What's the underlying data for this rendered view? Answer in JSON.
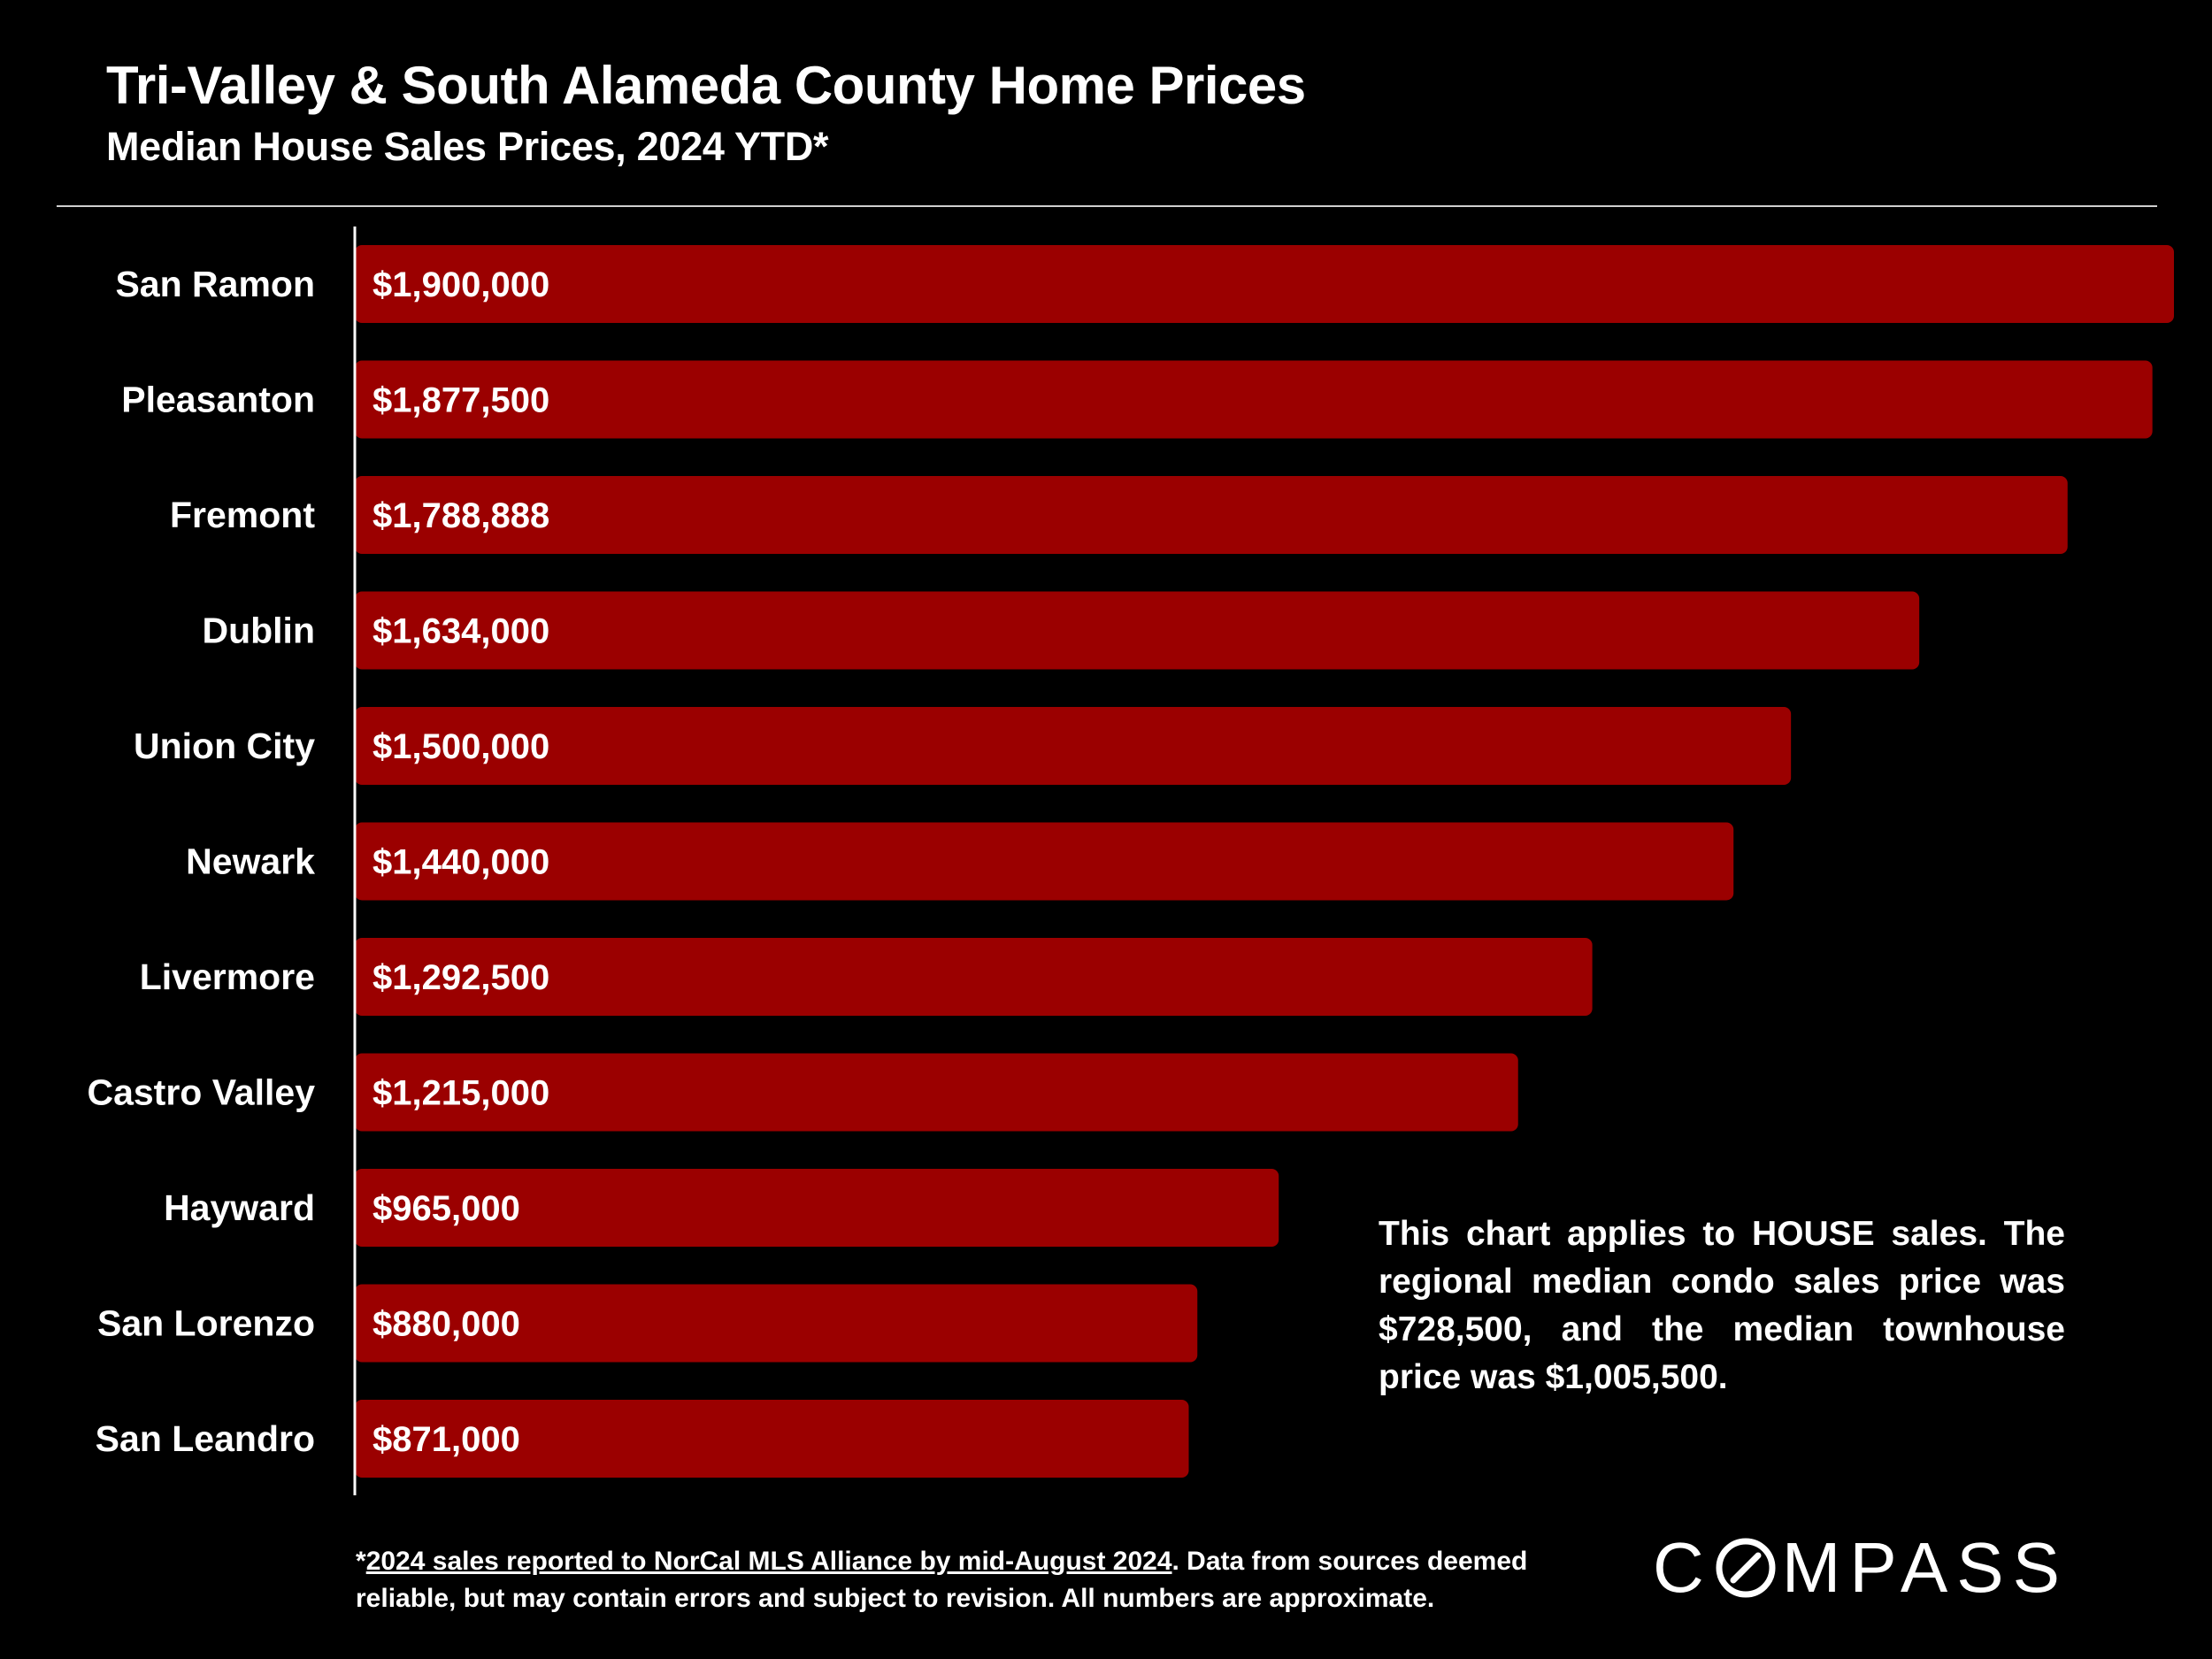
{
  "title": "Tri-Valley & South Alameda County Home Prices",
  "subtitle": "Median House Sales Prices, 2024 YTD*",
  "note": "This chart applies to HOUSE sales. The regional median condo sales price was $728,500, and the median townhouse price was $1,005,500.",
  "footnote": {
    "asterisk": "*",
    "linked": "2024 sales reported to NorCal MLS Alliance by mid-August 2024",
    "rest": ". Data from sources deemed reliable, but may contain errors and subject to revision. All numbers are approximate."
  },
  "logo": {
    "left": "C",
    "right": "MPASS",
    "icon": "compass-o-icon"
  },
  "colors": {
    "bar": "#9b0000",
    "background": "#000000",
    "text": "#ffffff"
  },
  "chart_data": {
    "type": "bar",
    "orientation": "horizontal",
    "title": "Tri-Valley & South Alameda County Home Prices",
    "subtitle": "Median House Sales Prices, 2024 YTD*",
    "categories": [
      "San Ramon",
      "Pleasanton",
      "Fremont",
      "Dublin",
      "Union City",
      "Newark",
      "Livermore",
      "Castro Valley",
      "Hayward",
      "San Lorenzo",
      "San Leandro"
    ],
    "values": [
      1900000,
      1877500,
      1788888,
      1634000,
      1500000,
      1440000,
      1292500,
      1215000,
      965000,
      880000,
      871000
    ],
    "data_labels": [
      "$1,900,000",
      "$1,877,500",
      "$1,788,888",
      "$1,634,000",
      "$1,500,000",
      "$1,440,000",
      "$1,292,500",
      "$1,215,000",
      "$965,000",
      "$880,000",
      "$871,000"
    ],
    "xlim": [
      0,
      1900000
    ],
    "grid": false,
    "legend": "none"
  }
}
